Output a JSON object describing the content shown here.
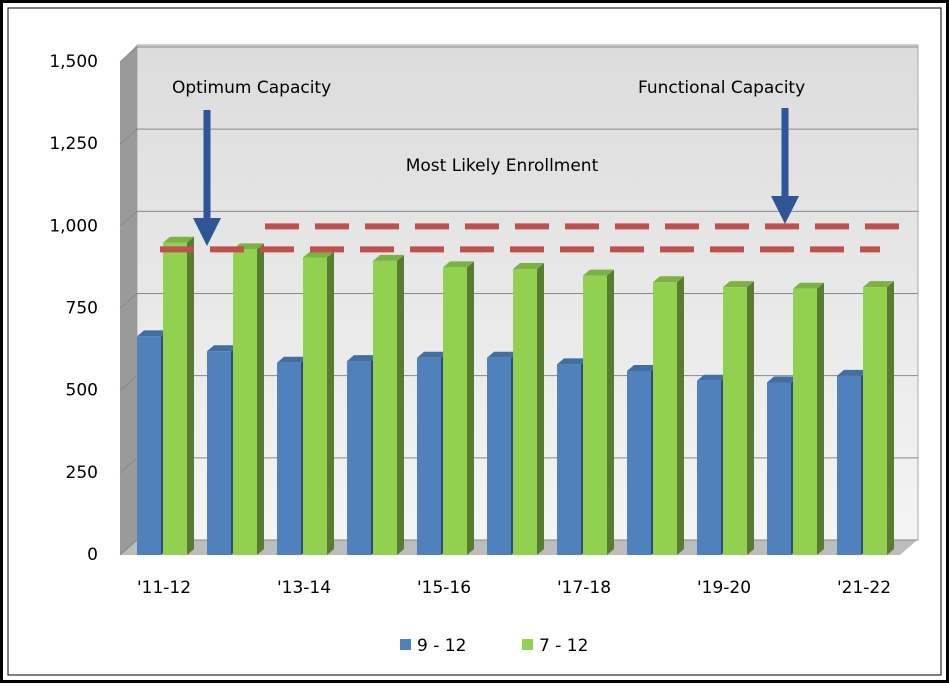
{
  "chart_data": {
    "type": "bar",
    "categories": [
      "'11-12",
      null,
      "'13-14",
      null,
      "'15-16",
      null,
      "'17-18",
      null,
      "'19-20",
      null,
      "'21-22"
    ],
    "series": [
      {
        "name": "9 - 12",
        "color": "#4f81bd",
        "values": [
          665,
          620,
          585,
          590,
          600,
          600,
          580,
          560,
          530,
          525,
          545
        ]
      },
      {
        "name": "7 - 12",
        "color": "#92d050",
        "values": [
          950,
          930,
          905,
          895,
          875,
          870,
          850,
          830,
          815,
          810,
          815
        ]
      }
    ],
    "ylim": [
      0,
      1500
    ],
    "yticks": [
      0,
      250,
      500,
      750,
      {
        "value": 1000,
        "label": "1,000"
      },
      {
        "value": 1250,
        "label": "1,250"
      },
      {
        "value": 1500,
        "label": "1,500"
      }
    ],
    "grid": true,
    "reference_lines": [
      {
        "label": "Optimum Capacity",
        "value": 930,
        "color": "#c0504d"
      },
      {
        "label": "Functional Capacity",
        "value": 1000,
        "color": "#c0504d"
      }
    ],
    "annotations": [
      "Most Likely Enrollment"
    ],
    "legend": "bottom"
  }
}
